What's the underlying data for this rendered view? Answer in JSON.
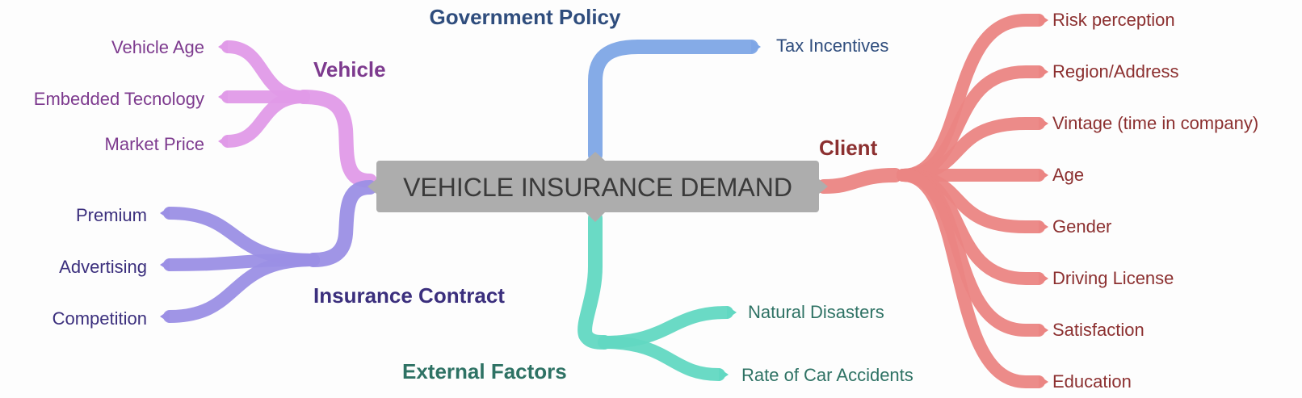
{
  "central": {
    "label": "VEHICLE INSURANCE DEMAND"
  },
  "colors": {
    "vehicle": "#e09ae8",
    "vehicle_text": "#7d3a8e",
    "contract": "#9b8fe5",
    "contract_text": "#3b2f7d",
    "government": "#7ea6e6",
    "government_text": "#2f4d7d",
    "external": "#62d8c2",
    "external_text": "#2e7264",
    "client": "#eb8583",
    "client_text": "#8c3030",
    "central_fill": "#adadad"
  },
  "branches": {
    "vehicle": {
      "label": "Vehicle",
      "items": [
        "Vehicle Age",
        "Embedded Tecnology",
        "Market Price"
      ]
    },
    "contract": {
      "label": "Insurance Contract",
      "items": [
        "Premium",
        "Advertising",
        "Competition"
      ]
    },
    "government": {
      "label": "Government Policy",
      "items": [
        "Tax Incentives"
      ]
    },
    "external": {
      "label": "External Factors",
      "items": [
        "Natural Disasters",
        "Rate of Car Accidents"
      ]
    },
    "client": {
      "label": "Client",
      "items": [
        "Risk perception",
        "Region/Address",
        "Vintage (time in company)",
        "Age",
        "Gender",
        "Driving License",
        "Satisfaction",
        "Education"
      ]
    }
  }
}
